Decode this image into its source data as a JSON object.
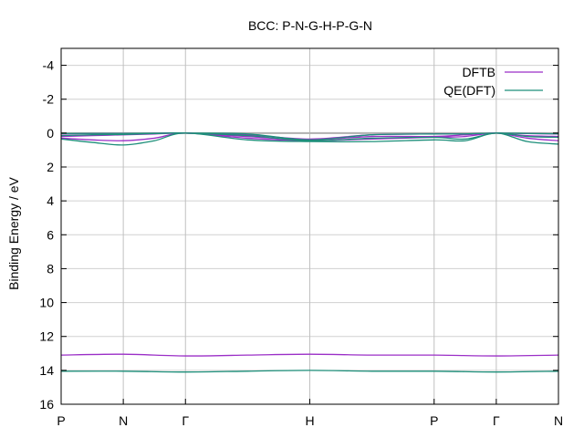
{
  "chart_data": {
    "type": "line",
    "title": "BCC: P-N-G-H-P-G-N",
    "xlabel": "",
    "ylabel": "Binding Energy / eV",
    "y_reversed": true,
    "ylim": [
      -5,
      16
    ],
    "yticks": [
      -4,
      -2,
      0,
      2,
      4,
      6,
      8,
      10,
      12,
      14,
      16
    ],
    "xlim": [
      0,
      8
    ],
    "kpoints": [
      {
        "label": "P",
        "x": 0
      },
      {
        "label": "N",
        "x": 1
      },
      {
        "label": "Γ",
        "x": 2
      },
      {
        "label": "H",
        "x": 4
      },
      {
        "label": "P",
        "x": 6
      },
      {
        "label": "Γ",
        "x": 7
      },
      {
        "label": "N",
        "x": 8
      }
    ],
    "grid": true,
    "legend_position": "top-right",
    "legend": [
      {
        "label": "DFTB",
        "color": "#9b2fc7"
      },
      {
        "label": "QE(DFT)",
        "color": "#1d8f7a"
      }
    ],
    "reference_line": {
      "y": 0,
      "color": "#b0b0b0"
    },
    "series": [
      {
        "name": "DFTB",
        "color": "#9b2fc7",
        "bands": [
          {
            "x": [
              0,
              0.5,
              1,
              1.5,
              2,
              3,
              4,
              5,
              6,
              6.5,
              7,
              7.5,
              8
            ],
            "y": [
              0.3,
              0.4,
              0.45,
              0.3,
              0.0,
              0.3,
              0.45,
              0.35,
              0.25,
              0.2,
              0.0,
              0.3,
              0.45
            ]
          },
          {
            "x": [
              0,
              0.5,
              1,
              1.5,
              2,
              3,
              4,
              5,
              6,
              6.5,
              7,
              7.5,
              8
            ],
            "y": [
              0.2,
              0.15,
              0.1,
              0.05,
              0.0,
              0.2,
              0.4,
              0.2,
              0.2,
              0.1,
              0.0,
              0.15,
              0.2
            ]
          },
          {
            "x": [
              0,
              0.5,
              1,
              1.5,
              2,
              3,
              4,
              5,
              6,
              6.5,
              7,
              7.5,
              8
            ],
            "y": [
              0.05,
              0.03,
              0.02,
              0.01,
              0.0,
              0.1,
              0.35,
              0.1,
              0.05,
              0.05,
              0.0,
              0.03,
              0.05
            ]
          },
          {
            "x": [
              0,
              1,
              2,
              3,
              4,
              5,
              6,
              7,
              8
            ],
            "y": [
              13.1,
              13.05,
              13.15,
              13.1,
              13.05,
              13.1,
              13.1,
              13.15,
              13.1
            ]
          }
        ]
      },
      {
        "name": "QE(DFT)",
        "color": "#1d8f7a",
        "bands": [
          {
            "x": [
              0,
              0.5,
              1,
              1.5,
              2,
              3,
              4,
              5,
              6,
              6.5,
              7,
              7.5,
              8
            ],
            "y": [
              0.35,
              0.55,
              0.7,
              0.45,
              0.0,
              0.4,
              0.5,
              0.5,
              0.4,
              0.45,
              0.0,
              0.5,
              0.65
            ]
          },
          {
            "x": [
              0,
              0.5,
              1,
              1.5,
              2,
              3,
              4,
              5,
              6,
              6.5,
              7,
              7.5,
              8
            ],
            "y": [
              0.15,
              0.1,
              0.08,
              0.03,
              0.0,
              0.15,
              0.45,
              0.3,
              0.25,
              0.35,
              0.0,
              0.2,
              0.25
            ]
          },
          {
            "x": [
              0,
              0.5,
              1,
              1.5,
              2,
              3,
              4,
              5,
              6,
              6.5,
              7,
              7.5,
              8
            ],
            "y": [
              0.03,
              0.02,
              0.02,
              0.01,
              0.0,
              0.05,
              0.4,
              0.1,
              0.05,
              0.05,
              0.0,
              0.02,
              0.04
            ]
          },
          {
            "x": [
              0,
              1,
              2,
              3,
              4,
              5,
              6,
              7,
              8
            ],
            "y": [
              14.05,
              14.05,
              14.1,
              14.05,
              14.0,
              14.05,
              14.05,
              14.1,
              14.05
            ]
          }
        ]
      }
    ]
  }
}
